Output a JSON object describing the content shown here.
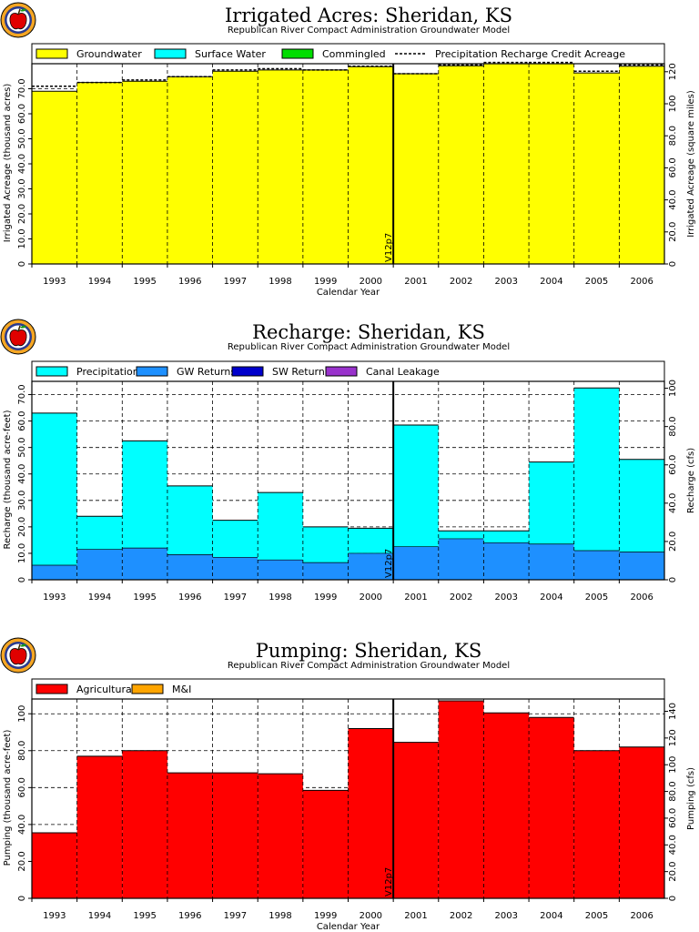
{
  "colors": {
    "groundwater": "#ffff00",
    "surface_water": "#00ffff",
    "commingled": "#00dd00",
    "precipitation": "#00ffff",
    "gw_returns": "#1e90ff",
    "sw_returns": "#0000cc",
    "canal_leakage": "#9932cc",
    "agricultural": "#ff0000",
    "mi": "#ffa500",
    "logo_ring": "#f5a623",
    "logo_fruit": "#e00000"
  },
  "icons": [
    "apple-logo-icon"
  ],
  "chart_data": [
    {
      "type": "bar",
      "title": "Irrigated Acres: Sheridan, KS",
      "subtitle": "Republican River Compact Administration Groundwater Model",
      "xlabel": "Calendar Year",
      "ylabel": "Irrigated Acreage (thousand acres)",
      "ylabel_right": "Irrigated Acreage (square miles)",
      "categories": [
        "1993",
        "1994",
        "1995",
        "1996",
        "1997",
        "1998",
        "1999",
        "2000",
        "2001",
        "2002",
        "2003",
        "2004",
        "2005",
        "2006"
      ],
      "ylim": [
        0,
        80
      ],
      "yticks": [
        "0",
        "10.0",
        "20.0",
        "30.0",
        "40.0",
        "50.0",
        "60.0",
        "70.0"
      ],
      "ylim_right": [
        0,
        125
      ],
      "yticks_right": [
        "0",
        "20.0",
        "40.0",
        "60.0",
        "80.0",
        "100",
        "120"
      ],
      "grid": true,
      "legend_position": "top",
      "marker_label": "V12p7",
      "marker_after": "2000",
      "series": [
        {
          "name": "Groundwater",
          "values": [
            69.0,
            72.5,
            73.0,
            74.8,
            77.0,
            77.5,
            77.5,
            78.8,
            76.0,
            79.2,
            80.0,
            80.0,
            76.3,
            79.0
          ]
        },
        {
          "name": "Surface Water",
          "values": [
            0,
            0,
            0,
            0,
            0,
            0,
            0,
            0,
            0,
            0,
            0,
            0,
            0,
            0
          ]
        },
        {
          "name": "Commingled",
          "values": [
            0,
            0,
            0,
            0,
            0,
            0,
            0,
            0,
            0,
            0,
            0,
            0,
            0,
            0
          ]
        },
        {
          "name": "Precipitation Recharge Credit Acreage",
          "values": [
            71.0,
            72.5,
            73.5,
            74.8,
            77.5,
            78.0,
            77.5,
            79.0,
            76.0,
            79.5,
            80.5,
            80.5,
            77.0,
            79.5
          ]
        }
      ]
    },
    {
      "type": "bar",
      "title": "Recharge: Sheridan, KS",
      "subtitle": "Republican River Compact Administration Groundwater Model",
      "xlabel": "",
      "ylabel": "Recharge (thousand acre-feet)",
      "ylabel_right": "Recharge (cfs)",
      "categories": [
        "1993",
        "1994",
        "1995",
        "1996",
        "1997",
        "1998",
        "1999",
        "2000",
        "2001",
        "2002",
        "2003",
        "2004",
        "2005",
        "2006"
      ],
      "ylim": [
        0,
        75
      ],
      "yticks": [
        "0",
        "10.0",
        "20.0",
        "30.0",
        "40.0",
        "50.0",
        "60.0",
        "70.0"
      ],
      "ylim_right": [
        0,
        103.6
      ],
      "yticks_right": [
        "0",
        "20.0",
        "40.0",
        "60.0",
        "80.0",
        "100"
      ],
      "grid": true,
      "legend_position": "top",
      "marker_label": "V12p7",
      "marker_after": "2000",
      "series": [
        {
          "name": "Precipitation",
          "values": [
            57.5,
            12.5,
            40.5,
            26.0,
            14.0,
            25.5,
            13.5,
            9.5,
            46.0,
            3.0,
            4.5,
            31.0,
            61.5,
            35.0
          ]
        },
        {
          "name": "GW Returns",
          "values": [
            5.5,
            11.5,
            12.0,
            9.5,
            8.5,
            7.5,
            6.5,
            10.0,
            12.5,
            15.5,
            14.0,
            13.5,
            11.0,
            10.5
          ]
        },
        {
          "name": "SW Returns",
          "values": [
            0,
            0,
            0,
            0,
            0,
            0,
            0,
            0,
            0,
            0,
            0,
            0,
            0,
            0
          ]
        },
        {
          "name": "Canal Leakage",
          "values": [
            0,
            0,
            0,
            0,
            0,
            0,
            0,
            0,
            0,
            0,
            0,
            0,
            0,
            0
          ]
        }
      ]
    },
    {
      "type": "bar",
      "title": "Pumping: Sheridan, KS",
      "subtitle": "Republican River Compact Administration Groundwater Model",
      "xlabel": "Calendar Year",
      "ylabel": "Pumping (thousand acre-feet)",
      "ylabel_right": "Pumping (cfs)",
      "categories": [
        "1993",
        "1994",
        "1995",
        "1996",
        "1997",
        "1998",
        "1999",
        "2000",
        "2001",
        "2002",
        "2003",
        "2004",
        "2005",
        "2006"
      ],
      "ylim": [
        0,
        108
      ],
      "yticks": [
        "0",
        "20.0",
        "40.0",
        "60.0",
        "80.0",
        "100"
      ],
      "ylim_right": [
        0,
        149.2
      ],
      "yticks_right": [
        "0",
        "20.0",
        "40.0",
        "60.0",
        "80.0",
        "100",
        "120",
        "140"
      ],
      "grid": true,
      "legend_position": "top",
      "marker_label": "V12p7",
      "marker_after": "2000",
      "series": [
        {
          "name": "Agricultural",
          "values": [
            35.5,
            77.0,
            80.0,
            68.0,
            68.0,
            67.5,
            58.5,
            92.0,
            84.5,
            107.0,
            100.5,
            98.0,
            80.0,
            82.0
          ]
        },
        {
          "name": "M&I",
          "values": [
            0,
            0,
            0,
            0,
            0,
            0,
            0,
            0,
            0,
            0,
            0,
            0,
            0,
            0
          ]
        }
      ]
    }
  ]
}
